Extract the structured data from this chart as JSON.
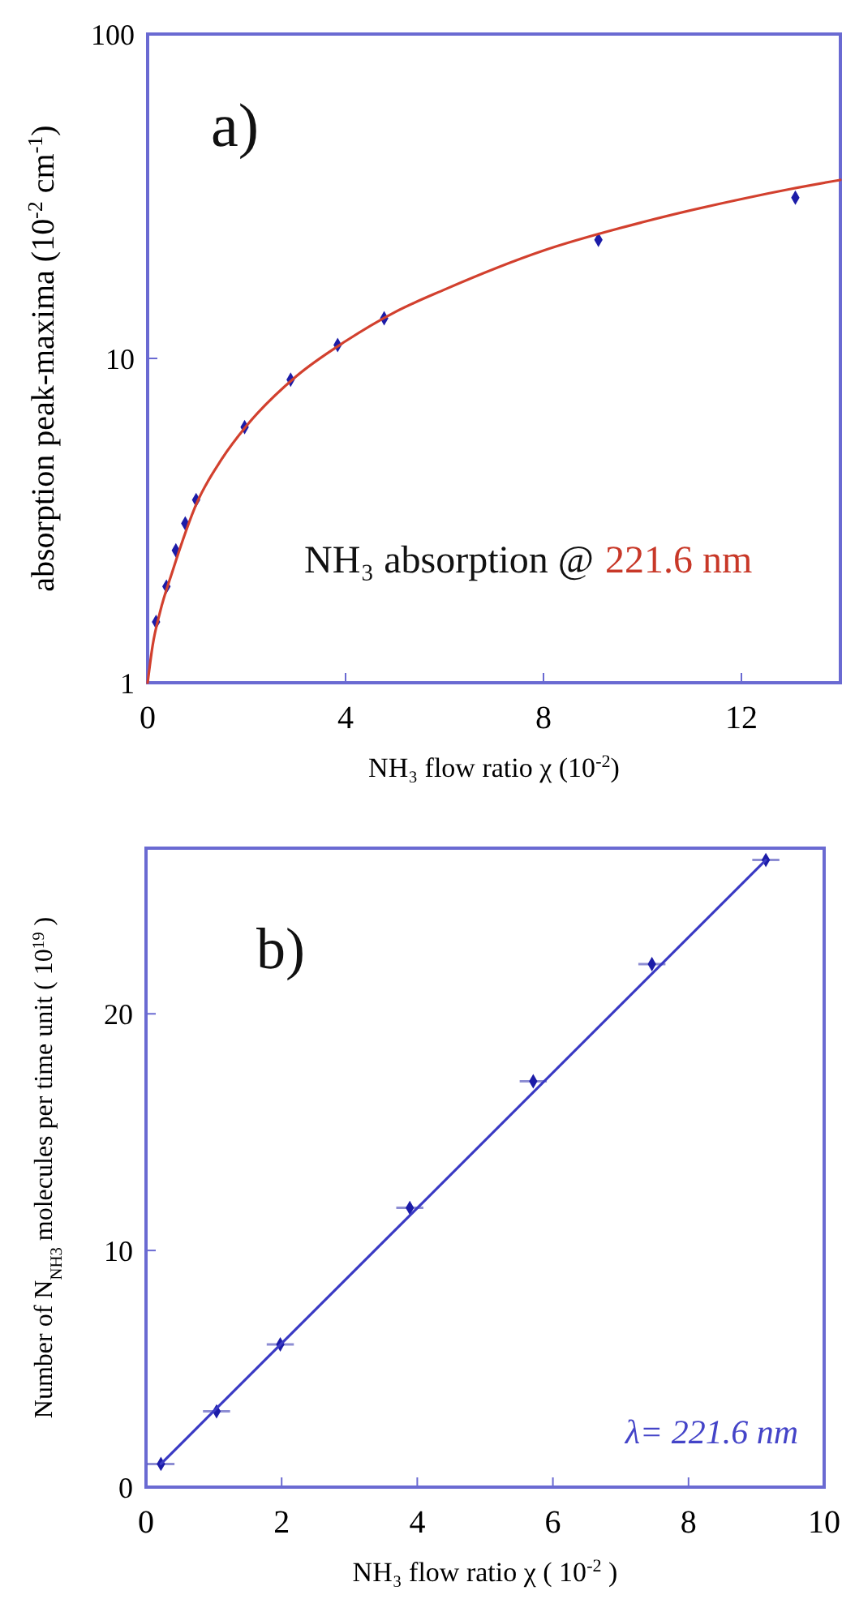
{
  "chart_data": [
    {
      "type": "scatter",
      "xlabel": "NH₃ flow ratio χ  (10$^{-2}$)",
      "ylabel": "absorption peak-maxima  (10$^{-2}$ cm$^{-1}$)",
      "log": true,
      "xlim": [
        0,
        14
      ],
      "ylim": [
        1,
        100
      ],
      "xticks": [
        0,
        4,
        8,
        12
      ],
      "yticks": [
        1,
        10,
        100
      ],
      "annotations": [
        "a)",
        "NH₃ absorption @",
        "221.6 nm"
      ],
      "series": [
        {
          "marker": "diamond",
          "color": "#1c1ca8",
          "x": [
            0.17,
            0.38,
            0.57,
            0.76,
            0.98,
            1.96,
            2.89,
            3.84,
            4.78,
            9.11,
            13.09
          ],
          "values": [
            1.54,
            1.98,
            2.56,
            3.1,
            3.66,
            6.14,
            8.6,
            11,
            13.3,
            23.2,
            31.3
          ]
        },
        {
          "type": "line",
          "color": "#d2402e",
          "x": [
            0,
            0.1,
            0.25,
            0.5,
            1,
            1.5,
            2,
            3,
            4,
            5,
            6,
            8,
            10,
            12,
            13,
            14
          ],
          "values": [
            1,
            1.3,
            1.65,
            2.2,
            3.6,
            4.9,
            6.2,
            8.8,
            11.3,
            13.9,
            16.3,
            21.5,
            26.3,
            31,
            33.3,
            35.5
          ]
        }
      ]
    },
    {
      "type": "scatter",
      "xlabel": "NH₃ flow ratio χ  ( 10$^{-2}$ )",
      "ylabel": "Number of N$_{NH3}$ molecules per time unit  ( 10$^{19}$ )",
      "xlim": [
        0,
        10
      ],
      "ylim": [
        0,
        27
      ],
      "xticks": [
        0,
        2,
        4,
        6,
        8,
        10
      ],
      "yticks": [
        0,
        10,
        20
      ],
      "annotations": [
        "b)",
        "λ= 221.6 nm"
      ],
      "series": [
        {
          "marker": "diamond",
          "color": "#1c1ca8",
          "x": [
            0.22,
            1.04,
            1.98,
            3.89,
            5.71,
            7.46,
            9.14
          ],
          "values": [
            0.98,
            3.2,
            6.03,
            11.8,
            17.15,
            22.1,
            26.5
          ],
          "xerrors": [
            0.2,
            0.2,
            0.2,
            0.2,
            0.2,
            0.2,
            0.2
          ]
        },
        {
          "type": "line",
          "color": "#3a3ac4",
          "x": [
            0.22,
            9.14
          ],
          "values": [
            0.98,
            26.5
          ]
        }
      ]
    }
  ]
}
